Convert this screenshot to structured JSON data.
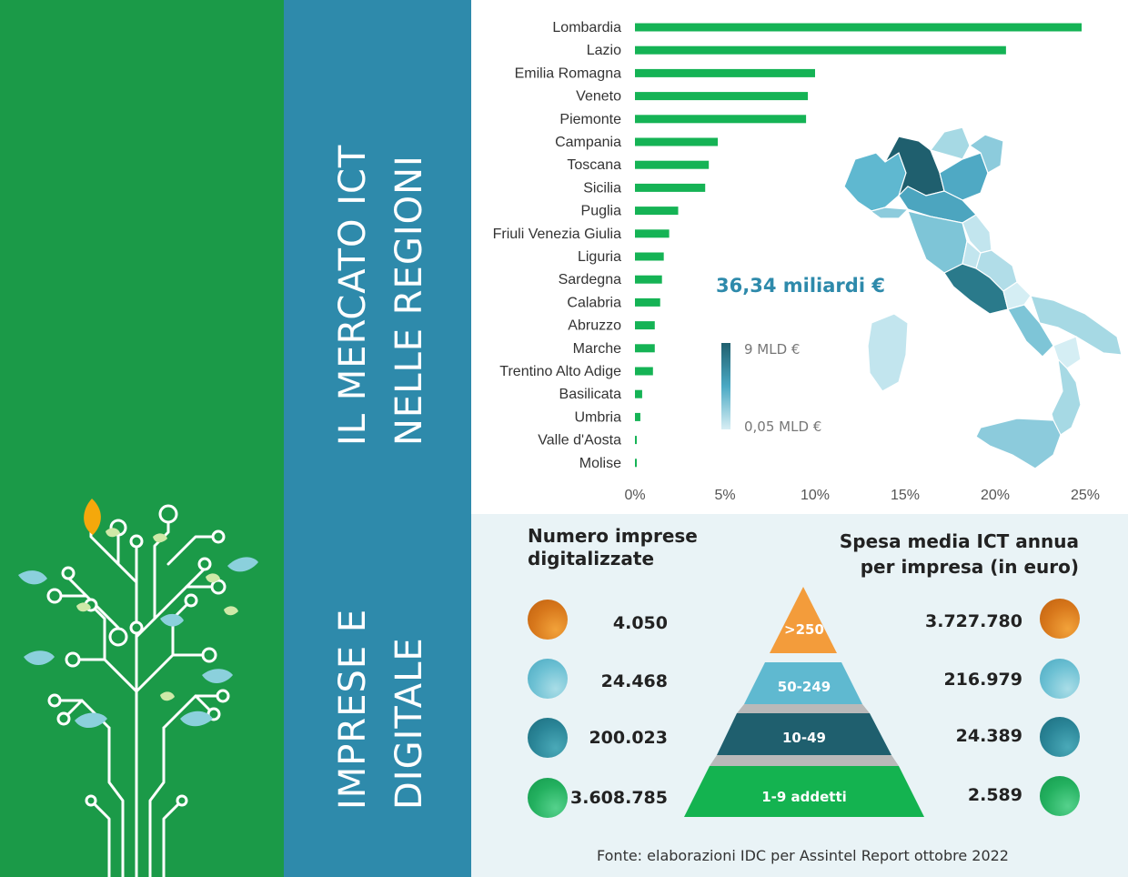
{
  "titles": {
    "top": {
      "line1": "IL MERCATO ICT",
      "line2": "NELLE REGIONI"
    },
    "bottom": {
      "line1": "IMPRESE E",
      "line2": "DIGITALE"
    }
  },
  "chart_data": {
    "type": "bar",
    "orientation": "horizontal",
    "categories": [
      "Lombardia",
      "Lazio",
      "Emilia Romagna",
      "Veneto",
      "Piemonte",
      "Campania",
      "Toscana",
      "Sicilia",
      "Puglia",
      "Friuli Venezia Giulia",
      "Liguria",
      "Sardegna",
      "Calabria",
      "Abruzzo",
      "Marche",
      "Trentino Alto Adige",
      "Basilicata",
      "Umbria",
      "Valle d'Aosta",
      "Molise"
    ],
    "values": [
      24.8,
      20.6,
      10.0,
      9.6,
      9.5,
      4.6,
      4.1,
      3.9,
      2.4,
      1.9,
      1.6,
      1.5,
      1.4,
      1.1,
      1.1,
      1.0,
      0.4,
      0.3,
      0.1,
      0.1
    ],
    "xlim": [
      0,
      25
    ],
    "xticks": [
      "0%",
      "5%",
      "10%",
      "15%",
      "20%",
      "25%"
    ],
    "bar_color": "#15b355"
  },
  "map": {
    "total": "36,34 miliardi €",
    "legend_max": "9 MLD €",
    "legend_min": "0,05 MLD €"
  },
  "imprese": {
    "left_heading": {
      "line1": "Numero imprese",
      "line2": "digitalizzate"
    },
    "right_heading": {
      "line1": "Spesa media ICT annua",
      "line2": "per impresa (in euro)"
    },
    "tiers": [
      {
        "label": ">250",
        "count": "4.050",
        "spend": "3.727.780",
        "color": "#f39c3b"
      },
      {
        "label": "50-249",
        "count": "24.468",
        "spend": "216.979",
        "color": "#5fb9d0"
      },
      {
        "label": "10-49",
        "count": "200.023",
        "spend": "24.389",
        "color": "#1f5f6e"
      },
      {
        "label": "1-9 addetti",
        "count": "3.608.785",
        "spend": "2.589",
        "color": "#14b350"
      }
    ],
    "source": "Fonte: elaborazioni IDC per Assintel Report ottobre 2022"
  }
}
